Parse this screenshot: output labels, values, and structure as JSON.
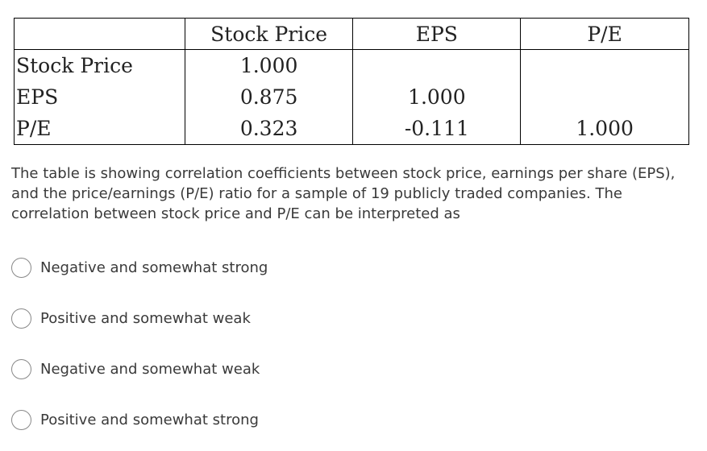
{
  "table": {
    "headers": [
      "",
      "Stock Price",
      "EPS",
      "P/E"
    ],
    "rows": [
      {
        "label": "Stock Price",
        "values": [
          "1.000",
          "",
          ""
        ]
      },
      {
        "label": "EPS",
        "values": [
          "0.875",
          "1.000",
          ""
        ]
      },
      {
        "label": "P/E",
        "values": [
          "0.323",
          "-0.111",
          "1.000"
        ]
      }
    ]
  },
  "question": {
    "text": "The table is showing correlation coefficients between stock price, earnings per share (EPS), and the price/earnings (P/E) ratio for a sample of 19 publicly traded companies. The correlation between stock price and P/E can be interpreted as"
  },
  "options": [
    {
      "label": "Negative and somewhat strong",
      "selected": false
    },
    {
      "label": "Positive and somewhat weak",
      "selected": false
    },
    {
      "label": "Negative and somewhat weak",
      "selected": false
    },
    {
      "label": "Positive and somewhat strong",
      "selected": false
    }
  ]
}
